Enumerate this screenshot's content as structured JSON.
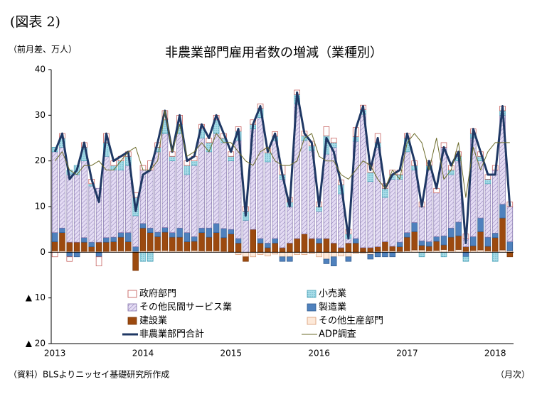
{
  "chart_data": {
    "type": "stacked_bar_line",
    "figure_label": "(図表 2)",
    "title": "非農業部門雇用者数の増減（業種別）",
    "y_label": "（前月差、万人）",
    "x_label": "（月次）",
    "source": "（資料）BLSよりニッセイ基礎研究所作成",
    "categories": [
      "2013",
      null,
      null,
      null,
      null,
      null,
      null,
      null,
      null,
      null,
      null,
      null,
      "2014",
      null,
      null,
      null,
      null,
      null,
      null,
      null,
      null,
      null,
      null,
      null,
      "2015",
      null,
      null,
      null,
      null,
      null,
      null,
      null,
      null,
      null,
      null,
      null,
      "2016",
      null,
      null,
      null,
      null,
      null,
      null,
      null,
      null,
      null,
      null,
      null,
      "2017",
      null,
      null,
      null,
      null,
      null,
      null,
      null,
      null,
      null,
      null,
      null,
      "2018",
      null,
      null
    ],
    "ylim": [
      -20,
      40
    ],
    "yticks": [
      {
        "value": -20,
        "label": "▲ 20"
      },
      {
        "value": -10,
        "label": "▲ 10"
      },
      0,
      10,
      20,
      30,
      40
    ],
    "series": [
      {
        "name": "その他生産部門",
        "kind": "bar",
        "color": "#fde9d9",
        "stroke": "#d99a74",
        "values": [
          0.3,
          0.3,
          0.2,
          0.2,
          0.2,
          0.2,
          0.2,
          0.2,
          0.3,
          0.3,
          0.3,
          0.2,
          0.3,
          0.3,
          0.4,
          0.4,
          0.3,
          0.3,
          0.3,
          0.4,
          0.3,
          0.3,
          0.3,
          0.2,
          0,
          -0.5,
          -1,
          -1,
          -0.5,
          -0.8,
          -0.4,
          -1,
          -1,
          -0.5,
          -0.5,
          -0.3,
          -1,
          -1.5,
          -1,
          -0.8,
          -1,
          -0.3,
          -0.2,
          -0.5,
          0.2,
          0.3,
          0.3,
          0.2,
          0.3,
          0.5,
          0.5,
          0.3,
          0.4,
          0.6,
          0.3,
          0.6,
          0.2,
          0.4,
          0.5,
          0.3,
          0.2,
          0.5,
          0.3
        ]
      },
      {
        "name": "建設業",
        "kind": "bar",
        "color": "#9c4a0f",
        "stroke": "#7a3608",
        "values": [
          2,
          4,
          2,
          2,
          2,
          1,
          2,
          2,
          2,
          3,
          2,
          -4,
          5,
          4,
          3,
          4,
          3,
          3,
          2,
          2,
          4,
          3,
          4,
          3,
          4,
          2,
          -1,
          5,
          2,
          1,
          2,
          1,
          2,
          3,
          4,
          3,
          2,
          3,
          2,
          1,
          2,
          2,
          1,
          1,
          1,
          2,
          1,
          1,
          3,
          4,
          1,
          1,
          2,
          1,
          3,
          3,
          1,
          1,
          4,
          1,
          3,
          7,
          -1
        ]
      },
      {
        "name": "製造業",
        "kind": "bar",
        "color": "#4f81bd",
        "stroke": "#2f5a8e",
        "values": [
          2,
          1,
          -1,
          -1,
          1,
          1,
          -1,
          1,
          1,
          1,
          2,
          1,
          1,
          1,
          1,
          1,
          1,
          2,
          2,
          1,
          1,
          2,
          2,
          2,
          1,
          1,
          0,
          0,
          1,
          1,
          1,
          -1,
          -1,
          0,
          0,
          0,
          1,
          -1,
          -2,
          0,
          -1,
          1,
          0,
          -1,
          -1,
          -1,
          -1,
          1,
          1,
          2,
          1,
          1,
          1,
          2,
          2,
          3,
          -1,
          2,
          3,
          2,
          1,
          3,
          2
        ]
      },
      {
        "name": "その他民間サービス業",
        "kind": "bar",
        "color": "#dcd3ee",
        "stroke": "#7f6fa8",
        "values": [
          17.7,
          17.7,
          14.8,
          14.8,
          16.8,
          12.3,
          11.8,
          17.8,
          14.7,
          13.7,
          14.7,
          6.8,
          11.7,
          12.7,
          17.6,
          20.6,
          15.7,
          20.7,
          12.7,
          15.6,
          19.7,
          16.7,
          19.7,
          18.8,
          15,
          21.5,
          7,
          22,
          26.5,
          17.8,
          21.4,
          15,
          8,
          29.5,
          20.5,
          19.3,
          6,
          18.5,
          21,
          11.8,
          1,
          21.3,
          29.2,
          14.5,
          21.8,
          9.7,
          14.7,
          13.8,
          17.7,
          11.5,
          7.5,
          15.7,
          9.6,
          19.4,
          11.7,
          13.4,
          1.8,
          21.6,
          12.5,
          11.7,
          13.8,
          19.5,
          7.7
        ]
      },
      {
        "name": "小売業",
        "kind": "bar",
        "color": "#a9dde9",
        "stroke": "#4aa3b8",
        "values": [
          1,
          2,
          1,
          2,
          3,
          0.5,
          0,
          3,
          1,
          2,
          2,
          4,
          -2,
          -2,
          1,
          3,
          1,
          2,
          2,
          1,
          2,
          2,
          3,
          1,
          1,
          2,
          2,
          1,
          2,
          2,
          1,
          1,
          1,
          2,
          1,
          1,
          1,
          4,
          1,
          2,
          1,
          1,
          1,
          2,
          1,
          2,
          1,
          1,
          3,
          1,
          -1,
          1,
          0,
          -1,
          1,
          1,
          -1,
          1,
          1,
          1,
          -2,
          1,
          0
        ]
      },
      {
        "name": "政府部門",
        "kind": "bar",
        "color": "#ffffff",
        "stroke": "#c0504d",
        "values": [
          -1,
          1,
          -1,
          0,
          1,
          1,
          -2,
          2,
          1,
          1,
          1,
          1,
          1,
          2,
          1,
          2,
          1,
          2,
          1,
          1,
          1,
          1,
          1,
          1,
          1,
          1,
          1,
          1,
          1,
          1,
          1,
          2,
          1,
          1,
          1,
          1,
          1,
          2,
          1,
          1,
          1,
          2,
          1,
          2,
          2,
          1,
          1,
          1,
          1,
          1,
          1,
          1,
          1,
          1,
          1,
          1,
          1,
          1,
          1,
          1,
          1,
          1,
          1
        ]
      },
      {
        "name": "非農業部門合計",
        "kind": "line",
        "color": "#1f3864",
        "width": 3,
        "values": [
          22,
          26,
          16,
          18,
          24,
          16,
          11,
          26,
          20,
          21,
          22,
          9,
          17,
          18,
          24,
          31,
          22,
          30,
          20,
          21,
          28,
          25,
          30,
          26,
          22,
          27,
          8,
          28,
          32,
          22,
          26,
          17,
          10,
          35,
          26,
          24,
          10,
          25,
          22,
          15,
          3,
          27,
          32,
          18,
          25,
          14,
          17,
          18,
          26,
          20,
          10,
          20,
          14,
          23,
          19,
          22,
          2,
          27,
          22,
          17,
          17,
          32,
          10
        ]
      },
      {
        "name": "ADP調査",
        "kind": "line",
        "color": "#6b6b2a",
        "width": 1,
        "values": [
          20,
          22,
          18,
          17,
          19,
          19,
          20,
          18,
          18,
          20,
          22,
          23,
          18,
          18,
          20,
          31,
          22,
          28,
          21,
          22,
          24,
          22,
          26,
          24,
          24,
          22,
          20,
          19,
          22,
          23,
          20,
          19,
          19,
          20,
          25,
          26,
          21,
          20,
          20,
          17,
          16,
          18,
          20,
          19,
          16,
          14,
          18,
          16,
          24,
          26,
          24,
          18,
          25,
          16,
          18,
          24,
          12,
          23,
          18,
          22,
          24,
          24,
          24
        ]
      }
    ],
    "legend_order": [
      5,
      4,
      3,
      2,
      1,
      0,
      6,
      7
    ]
  }
}
